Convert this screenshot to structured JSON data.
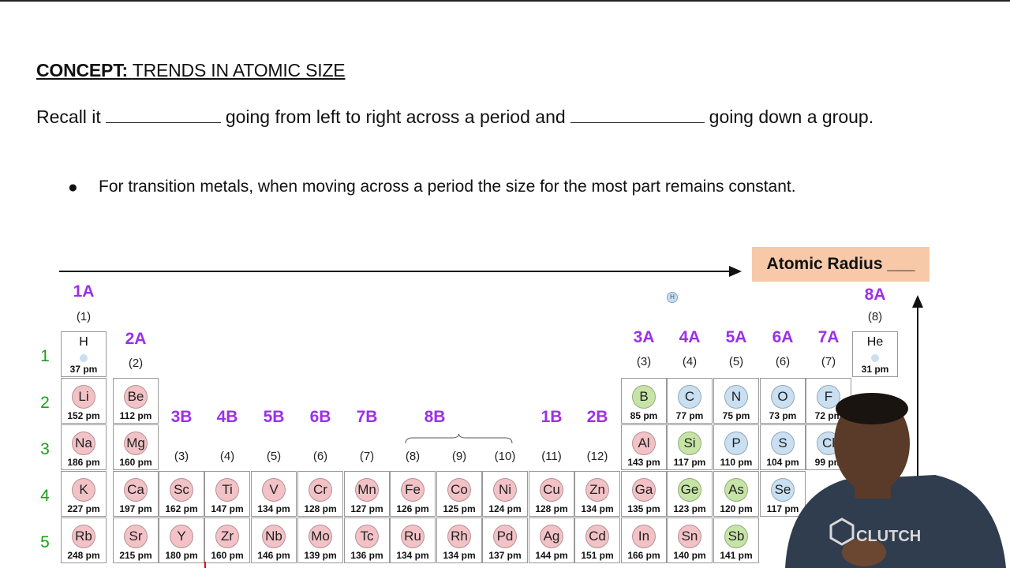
{
  "concept": {
    "label": "CONCEPT:",
    "title": "TRENDS IN ATOMIC SIZE"
  },
  "recall": {
    "part1": "Recall it",
    "part2": "going from left to right across a period and",
    "part3": "going down a group."
  },
  "bullet": "For transition metals, when moving across a period the size for the most part remains constant.",
  "radius_label": "Atomic Radius ___",
  "h_badge": "H",
  "logo_text": "CLUTCH",
  "groups": [
    {
      "label": "1A",
      "num": "(1)"
    },
    {
      "label": "2A",
      "num": "(2)"
    },
    {
      "label": "3B",
      "num": "(3)"
    },
    {
      "label": "4B",
      "num": "(4)"
    },
    {
      "label": "5B",
      "num": "(5)"
    },
    {
      "label": "6B",
      "num": "(6)"
    },
    {
      "label": "7B",
      "num": "(7)"
    },
    {
      "label": "8B",
      "num": "(8)"
    },
    {
      "label": "",
      "num": "(9)"
    },
    {
      "label": "",
      "num": "(10)"
    },
    {
      "label": "1B",
      "num": "(11)"
    },
    {
      "label": "2B",
      "num": "(12)"
    },
    {
      "label": "3A",
      "num": "(3)"
    },
    {
      "label": "4A",
      "num": "(4)"
    },
    {
      "label": "5A",
      "num": "(5)"
    },
    {
      "label": "6A",
      "num": "(6)"
    },
    {
      "label": "7A",
      "num": "(7)"
    },
    {
      "label": "8A",
      "num": "(8)"
    }
  ],
  "periods": [
    "1",
    "2",
    "3",
    "4",
    "5"
  ],
  "colors": {
    "metal": "#f2c2c6",
    "metalloid": "#c6e4a6",
    "nonmetal": "#c9dff2",
    "group_label": "#9b30e8",
    "period_label": "#1aa01a"
  },
  "elements": [
    {
      "sym": "H",
      "pm": "37 pm"
    },
    {
      "sym": "He",
      "pm": "31 pm"
    },
    {
      "sym": "Li",
      "pm": "152 pm"
    },
    {
      "sym": "Be",
      "pm": "112 pm"
    },
    {
      "sym": "B",
      "pm": "85 pm"
    },
    {
      "sym": "C",
      "pm": "77 pm"
    },
    {
      "sym": "N",
      "pm": "75 pm"
    },
    {
      "sym": "O",
      "pm": "73 pm"
    },
    {
      "sym": "F",
      "pm": "72 pm"
    },
    {
      "sym": "Na",
      "pm": "186 pm"
    },
    {
      "sym": "Mg",
      "pm": "160 pm"
    },
    {
      "sym": "Al",
      "pm": "143 pm"
    },
    {
      "sym": "Si",
      "pm": "117 pm"
    },
    {
      "sym": "P",
      "pm": "110 pm"
    },
    {
      "sym": "S",
      "pm": "104 pm"
    },
    {
      "sym": "Cl",
      "pm": "99 pm"
    },
    {
      "sym": "K",
      "pm": "227 pm"
    },
    {
      "sym": "Ca",
      "pm": "197 pm"
    },
    {
      "sym": "Sc",
      "pm": "162 pm"
    },
    {
      "sym": "Ti",
      "pm": "147 pm"
    },
    {
      "sym": "V",
      "pm": "134 pm"
    },
    {
      "sym": "Cr",
      "pm": "128 pm"
    },
    {
      "sym": "Mn",
      "pm": "127 pm"
    },
    {
      "sym": "Fe",
      "pm": "126 pm"
    },
    {
      "sym": "Co",
      "pm": "125 pm"
    },
    {
      "sym": "Ni",
      "pm": "124 pm"
    },
    {
      "sym": "Cu",
      "pm": "128 pm"
    },
    {
      "sym": "Zn",
      "pm": "134 pm"
    },
    {
      "sym": "Ga",
      "pm": "135 pm"
    },
    {
      "sym": "Ge",
      "pm": "123 pm"
    },
    {
      "sym": "As",
      "pm": "120 pm"
    },
    {
      "sym": "Se",
      "pm": "117 pm"
    },
    {
      "sym": "Rb",
      "pm": "248 pm"
    },
    {
      "sym": "Sr",
      "pm": "215 pm"
    },
    {
      "sym": "Y",
      "pm": "180 pm"
    },
    {
      "sym": "Zr",
      "pm": "160 pm"
    },
    {
      "sym": "Nb",
      "pm": "146 pm"
    },
    {
      "sym": "Mo",
      "pm": "139 pm"
    },
    {
      "sym": "Tc",
      "pm": "136 pm"
    },
    {
      "sym": "Ru",
      "pm": "134 pm"
    },
    {
      "sym": "Rh",
      "pm": "134 pm"
    },
    {
      "sym": "Pd",
      "pm": "137 pm"
    },
    {
      "sym": "Ag",
      "pm": "144 pm"
    },
    {
      "sym": "Cd",
      "pm": "151 pm"
    },
    {
      "sym": "In",
      "pm": "166 pm"
    },
    {
      "sym": "Sn",
      "pm": "140 pm"
    },
    {
      "sym": "Sb",
      "pm": "141 pm"
    }
  ]
}
